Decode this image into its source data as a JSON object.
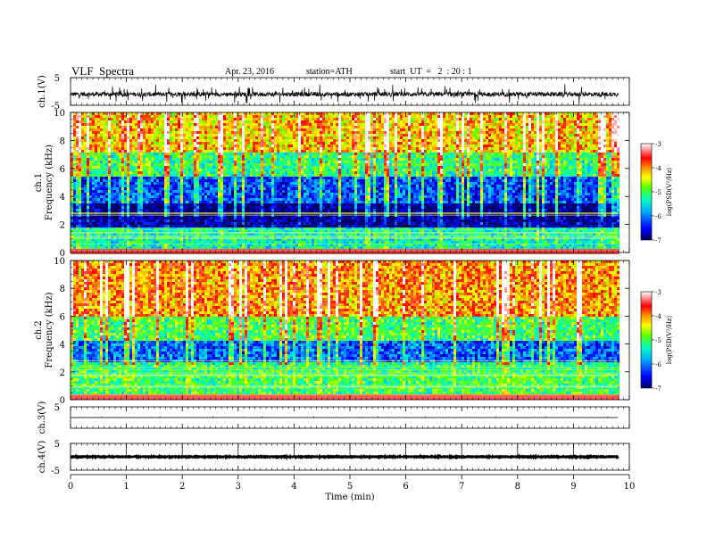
{
  "header": {
    "title": "VLF  Spectra",
    "date": "Apr. 23, 2016",
    "station": "station=ATH",
    "start": "start  UT  =   2  : 20 : 1"
  },
  "chart_data": [
    {
      "id": "ch1_waveform",
      "type": "line",
      "ylabel": "ch.1(V)",
      "ylim": [
        -5,
        5
      ],
      "y_ticks": [
        "5",
        "-5"
      ],
      "description_values": {
        "baseline": -1.0,
        "noise_amplitude": 1.6
      }
    },
    {
      "id": "ch1_spectrogram",
      "type": "heatmap",
      "ylabel_channel": "ch.1",
      "ylabel": "Frequency  (kHz)",
      "ylim": [
        0,
        10
      ],
      "y_ticks": [
        "0",
        "2",
        "4",
        "6",
        "8",
        "10"
      ],
      "bands_khz": [
        {
          "from": 0,
          "to": 1.8,
          "level": -5.3
        },
        {
          "from": 1.8,
          "to": 3.5,
          "level": -6.8
        },
        {
          "from": 3.5,
          "to": 5.5,
          "level": -6.0
        },
        {
          "from": 5.5,
          "to": 7.2,
          "level": -4.9
        },
        {
          "from": 7.2,
          "to": 10,
          "level": -4.0
        }
      ],
      "colorbar": {
        "label": "log(PSD(V²/Hz)",
        "range": [
          -7,
          -3
        ],
        "ticks": [
          "-3",
          "-4",
          "-5",
          "-6",
          "-7"
        ]
      }
    },
    {
      "id": "ch2_spectrogram",
      "type": "heatmap",
      "ylabel_channel": "ch.2",
      "ylabel": "Frequency  (kHz)",
      "ylim": [
        0,
        10
      ],
      "y_ticks": [
        "0",
        "2",
        "4",
        "6",
        "8",
        "10"
      ],
      "bands_khz": [
        {
          "from": 0,
          "to": 2.6,
          "level": -5.0
        },
        {
          "from": 2.6,
          "to": 4.2,
          "level": -5.9
        },
        {
          "from": 4.2,
          "to": 6.0,
          "level": -4.8
        },
        {
          "from": 6.0,
          "to": 10,
          "level": -3.8
        }
      ],
      "colorbar": {
        "label": "log(PSD(V²/Hz)",
        "range": [
          -7,
          -3
        ],
        "ticks": [
          "-3",
          "-4",
          "-5",
          "-6",
          "-7"
        ]
      }
    },
    {
      "id": "ch3_waveform",
      "type": "line",
      "ylabel": "ch.3(V)",
      "ylim": [
        -5,
        5
      ],
      "y_ticks": [
        "5"
      ],
      "description_values": {
        "baseline": 0.0,
        "noise_amplitude": 0.1
      }
    },
    {
      "id": "ch4_waveform",
      "type": "line",
      "ylabel": "ch.4(V)",
      "ylim": [
        -5,
        5
      ],
      "y_ticks": [
        "5",
        "-5"
      ],
      "description_values": {
        "baseline": 0.0,
        "noise_amplitude": 0.3
      }
    }
  ],
  "x_axis": {
    "label": "Time  (min)",
    "range": [
      0,
      10
    ],
    "ticks": [
      "0",
      "1",
      "2",
      "3",
      "4",
      "5",
      "6",
      "7",
      "8",
      "9",
      "10"
    ],
    "data_end_min": 9.8
  },
  "colors": {
    "colormap": [
      "#000080",
      "#0000ff",
      "#00a0ff",
      "#00ffff",
      "#00ff80",
      "#80ff00",
      "#ffff00",
      "#ffa000",
      "#ff0000",
      "#ffffff"
    ]
  }
}
